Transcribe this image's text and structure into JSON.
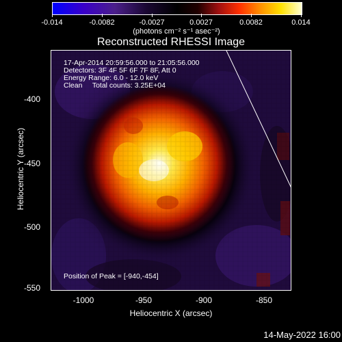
{
  "colorbar": {
    "ticks": [
      "-0.014",
      "-0.0082",
      "-0.0027",
      "0.0027",
      "0.0082",
      "0.014"
    ],
    "units": "(photons cm⁻² s⁻¹ asec⁻²)"
  },
  "title": "Reconstructed RHESSI Image",
  "info": {
    "time": "17-Apr-2014 20:59:56.000 to 21:05:56.000",
    "detectors": "Detectors: 3F 4F 5F 6F 7F 8F, Att 0",
    "energy": "Energy Range: 6.0 - 12.0 keV",
    "method": "Clean     Total counts: 3.25E+04"
  },
  "peak": "Position of Peak = [-940,-454]",
  "axes": {
    "xlabel": "Heliocentric X (arcsec)",
    "ylabel": "Heliocentric Y (arcsec)",
    "xticks": [
      "-1000",
      "-950",
      "-900",
      "-850"
    ],
    "yticks": [
      "-400",
      "-450",
      "-500",
      "-550"
    ]
  },
  "footer": "14-May-2022 16:00",
  "colors": {
    "background": "#000000",
    "text": "#ffffff",
    "limb_line": "#ffffff"
  }
}
